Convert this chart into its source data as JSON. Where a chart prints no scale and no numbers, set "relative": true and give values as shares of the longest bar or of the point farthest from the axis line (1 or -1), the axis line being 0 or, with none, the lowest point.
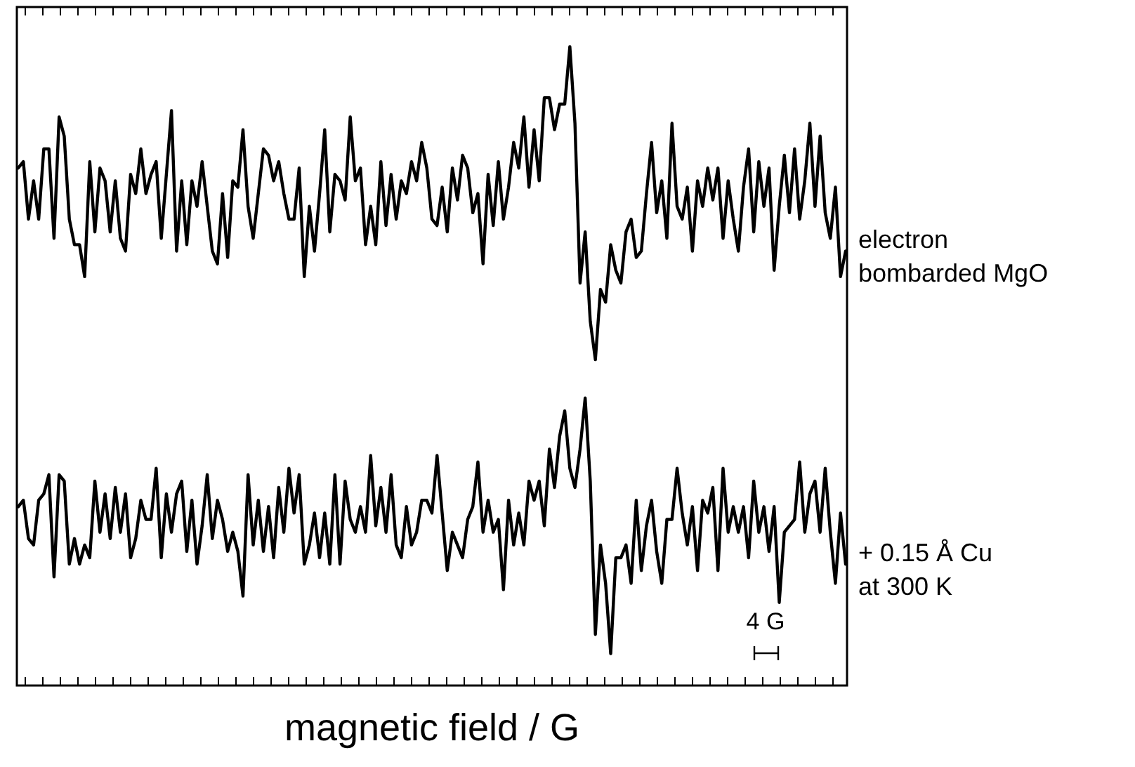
{
  "chart_data": {
    "type": "line",
    "relative": true,
    "xlabel": "magnetic field / G",
    "categories": [
      null,
      null,
      null,
      null,
      null,
      null,
      null,
      null,
      null,
      null,
      null,
      null,
      null,
      null,
      null,
      null,
      null,
      null,
      null,
      null,
      null,
      null,
      null,
      null,
      null,
      null,
      null,
      null,
      null,
      null,
      null,
      null,
      null,
      null,
      null,
      null,
      null,
      null,
      null,
      null,
      null,
      null,
      null,
      null,
      null,
      null,
      null,
      null,
      null,
      null,
      null,
      null,
      null,
      null,
      null,
      null,
      null,
      null,
      null,
      null,
      null,
      null,
      null,
      null,
      null,
      null,
      null,
      null,
      null,
      null,
      null,
      null,
      null,
      null,
      null,
      null,
      null,
      null,
      null,
      null,
      null,
      null,
      null,
      null,
      null,
      null,
      null,
      null,
      null,
      null,
      null,
      null,
      null,
      null,
      null,
      null,
      null,
      null,
      null,
      null,
      null,
      null,
      null,
      null,
      null,
      null,
      null,
      null,
      null,
      null,
      null,
      null,
      null,
      null,
      null,
      null,
      null,
      null,
      null,
      null,
      null,
      null,
      null,
      null,
      null,
      null,
      null,
      null,
      null,
      null,
      null,
      null,
      null,
      null,
      null,
      null,
      null,
      null,
      null,
      null,
      null,
      null,
      null,
      null,
      null,
      null,
      null,
      null,
      null,
      null,
      null,
      null,
      null,
      null,
      null,
      null,
      null,
      null,
      null,
      null,
      null,
      null,
      null
    ],
    "grid": false,
    "legend": false,
    "marker": "none",
    "line_style": "solid",
    "annotations": [
      "4 G"
    ],
    "series": [
      {
        "name": "electron bombarded MgO",
        "color": "#000000",
        "values": [
          0.81,
          0.82,
          0.73,
          0.79,
          0.73,
          0.84,
          0.84,
          0.7,
          0.89,
          0.86,
          0.73,
          0.69,
          0.69,
          0.64,
          0.82,
          0.71,
          0.81,
          0.79,
          0.71,
          0.79,
          0.7,
          0.68,
          0.8,
          0.77,
          0.84,
          0.77,
          0.8,
          0.82,
          0.7,
          0.8,
          0.9,
          0.68,
          0.79,
          0.69,
          0.79,
          0.75,
          0.82,
          0.75,
          0.68,
          0.66,
          0.77,
          0.67,
          0.79,
          0.78,
          0.87,
          0.75,
          0.7,
          0.77,
          0.84,
          0.83,
          0.79,
          0.82,
          0.77,
          0.73,
          0.73,
          0.81,
          0.64,
          0.75,
          0.68,
          0.77,
          0.87,
          0.71,
          0.8,
          0.79,
          0.76,
          0.89,
          0.79,
          0.81,
          0.69,
          0.75,
          0.69,
          0.82,
          0.72,
          0.8,
          0.73,
          0.79,
          0.77,
          0.82,
          0.79,
          0.85,
          0.81,
          0.73,
          0.72,
          0.78,
          0.71,
          0.81,
          0.76,
          0.83,
          0.81,
          0.74,
          0.77,
          0.66,
          0.8,
          0.72,
          0.82,
          0.73,
          0.78,
          0.85,
          0.81,
          0.89,
          0.78,
          0.87,
          0.79,
          0.92,
          0.92,
          0.87,
          0.91,
          0.91,
          1.0,
          0.88,
          0.63,
          0.71,
          0.57,
          0.51,
          0.62,
          0.6,
          0.69,
          0.65,
          0.63,
          0.71,
          0.73,
          0.67,
          0.68,
          0.77,
          0.85,
          0.74,
          0.79,
          0.7,
          0.88,
          0.75,
          0.73,
          0.78,
          0.68,
          0.79,
          0.75,
          0.81,
          0.76,
          0.81,
          0.7,
          0.79,
          0.73,
          0.68,
          0.78,
          0.84,
          0.71,
          0.82,
          0.75,
          0.81,
          0.65,
          0.75,
          0.83,
          0.74,
          0.84,
          0.73,
          0.79,
          0.88,
          0.75,
          0.86,
          0.74,
          0.7,
          0.78,
          0.64,
          0.68
        ]
      },
      {
        "name": "+ 0.15 Å Cu at 300 K",
        "color": "#000000",
        "values": [
          0.28,
          0.29,
          0.23,
          0.22,
          0.29,
          0.3,
          0.33,
          0.17,
          0.33,
          0.32,
          0.19,
          0.23,
          0.19,
          0.22,
          0.2,
          0.32,
          0.24,
          0.3,
          0.23,
          0.31,
          0.24,
          0.3,
          0.2,
          0.23,
          0.29,
          0.26,
          0.26,
          0.34,
          0.2,
          0.3,
          0.24,
          0.3,
          0.32,
          0.21,
          0.29,
          0.19,
          0.25,
          0.33,
          0.23,
          0.29,
          0.26,
          0.21,
          0.24,
          0.21,
          0.14,
          0.33,
          0.22,
          0.29,
          0.21,
          0.28,
          0.2,
          0.31,
          0.24,
          0.34,
          0.27,
          0.33,
          0.19,
          0.22,
          0.27,
          0.2,
          0.27,
          0.19,
          0.33,
          0.19,
          0.32,
          0.26,
          0.24,
          0.28,
          0.24,
          0.36,
          0.25,
          0.31,
          0.24,
          0.33,
          0.22,
          0.2,
          0.28,
          0.22,
          0.24,
          0.29,
          0.29,
          0.27,
          0.36,
          0.27,
          0.18,
          0.24,
          0.22,
          0.2,
          0.26,
          0.28,
          0.35,
          0.24,
          0.29,
          0.24,
          0.26,
          0.15,
          0.29,
          0.22,
          0.27,
          0.22,
          0.32,
          0.29,
          0.32,
          0.25,
          0.37,
          0.31,
          0.39,
          0.43,
          0.34,
          0.31,
          0.37,
          0.45,
          0.32,
          0.08,
          0.22,
          0.16,
          0.05,
          0.2,
          0.2,
          0.22,
          0.16,
          0.29,
          0.18,
          0.25,
          0.29,
          0.21,
          0.16,
          0.26,
          0.26,
          0.34,
          0.27,
          0.22,
          0.28,
          0.18,
          0.29,
          0.27,
          0.31,
          0.18,
          0.34,
          0.24,
          0.28,
          0.24,
          0.28,
          0.2,
          0.32,
          0.24,
          0.28,
          0.21,
          0.28,
          0.13,
          0.24,
          0.25,
          0.26,
          0.35,
          0.24,
          0.3,
          0.32,
          0.24,
          0.34,
          0.24,
          0.16,
          0.27,
          0.19
        ]
      }
    ]
  }
}
